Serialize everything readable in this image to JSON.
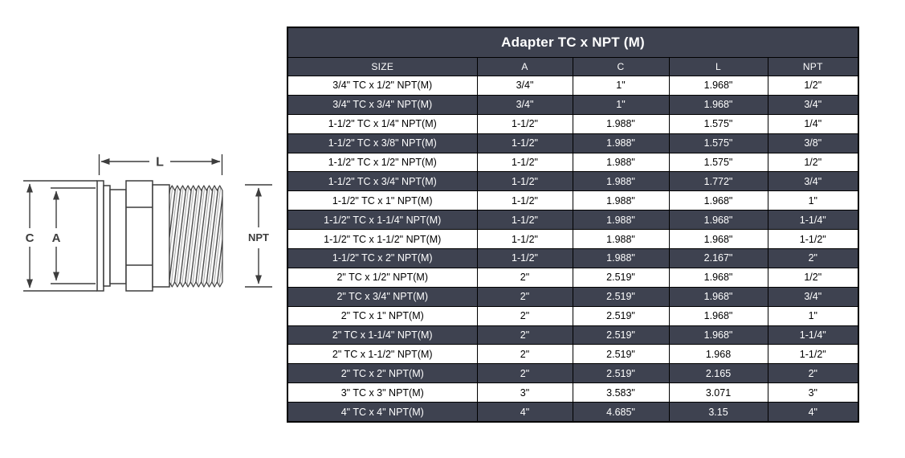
{
  "diagram": {
    "labels": {
      "l": "L",
      "c": "C",
      "a": "A",
      "npt": "NPT"
    }
  },
  "table": {
    "title": "Adapter TC x NPT (M)",
    "columns": [
      "SIZE",
      "A",
      "C",
      "L",
      "NPT"
    ],
    "rows": [
      [
        "3/4\" TC x 1/2\" NPT(M)",
        "3/4\"",
        "1\"",
        "1.968\"",
        "1/2\""
      ],
      [
        "3/4\" TC x 3/4\" NPT(M)",
        "3/4\"",
        "1\"",
        "1.968\"",
        "3/4\""
      ],
      [
        "1-1/2\" TC x 1/4\" NPT(M)",
        "1-1/2\"",
        "1.988\"",
        "1.575\"",
        "1/4\""
      ],
      [
        "1-1/2\" TC x 3/8\" NPT(M)",
        "1-1/2\"",
        "1.988\"",
        "1.575\"",
        "3/8\""
      ],
      [
        "1-1/2\" TC x 1/2\" NPT(M)",
        "1-1/2\"",
        "1.988\"",
        "1.575\"",
        "1/2\""
      ],
      [
        "1-1/2\" TC x 3/4\" NPT(M)",
        "1-1/2\"",
        "1.988\"",
        "1.772\"",
        "3/4\""
      ],
      [
        "1-1/2\" TC x 1\" NPT(M)",
        "1-1/2\"",
        "1.988\"",
        "1.968\"",
        "1\""
      ],
      [
        "1-1/2\" TC x 1-1/4\" NPT(M)",
        "1-1/2\"",
        "1.988\"",
        "1.968\"",
        "1-1/4\""
      ],
      [
        "1-1/2\" TC x 1-1/2\" NPT(M)",
        "1-1/2\"",
        "1.988\"",
        "1.968\"",
        "1-1/2\""
      ],
      [
        "1-1/2\" TC x 2\" NPT(M)",
        "1-1/2\"",
        "1.988\"",
        "2.167\"",
        "2\""
      ],
      [
        "2\" TC x 1/2\" NPT(M)",
        "2\"",
        "2.519\"",
        "1.968\"",
        "1/2\""
      ],
      [
        "2\" TC x 3/4\" NPT(M)",
        "2\"",
        "2.519\"",
        "1.968\"",
        "3/4\""
      ],
      [
        "2\" TC x 1\" NPT(M)",
        "2\"",
        "2.519\"",
        "1.968\"",
        "1\""
      ],
      [
        "2\" TC x 1-1/4\" NPT(M)",
        "2\"",
        "2.519\"",
        "1.968\"",
        "1-1/4\""
      ],
      [
        "2\" TC x 1-1/2\" NPT(M)",
        "2\"",
        "2.519\"",
        "1.968",
        "1-1/2\""
      ],
      [
        "2\" TC x 2\" NPT(M)",
        "2\"",
        "2.519\"",
        "2.165",
        "2\""
      ],
      [
        "3\" TC x 3\" NPT(M)",
        "3\"",
        "3.583\"",
        "3.071",
        "3\""
      ],
      [
        "4\" TC x 4\" NPT(M)",
        "4\"",
        "4.685\"",
        "3.15",
        "4\""
      ]
    ],
    "colors": {
      "header_bg": "#3E4250",
      "row_alt_bg": "#3E4250",
      "row_bg": "#FFFFFF",
      "border": "#000000"
    }
  }
}
